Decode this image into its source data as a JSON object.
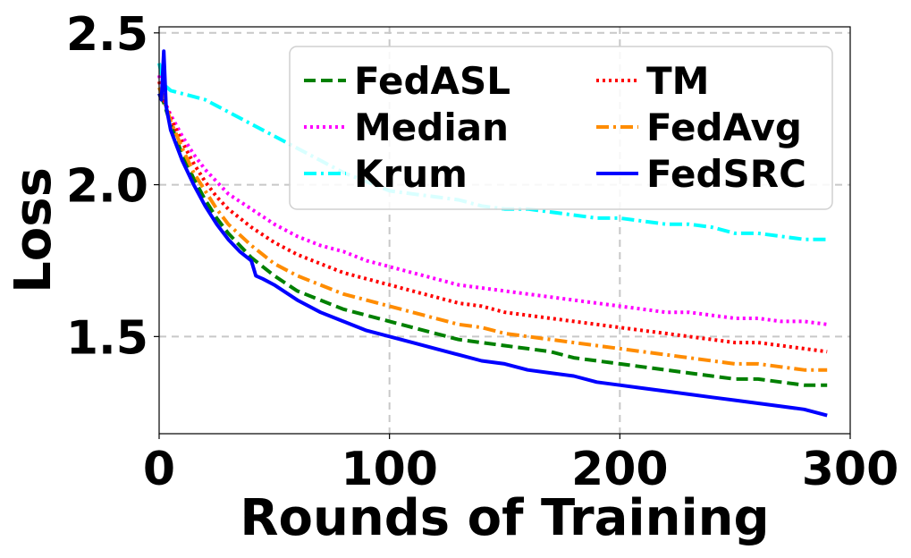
{
  "chart_data": {
    "type": "line",
    "title": "",
    "xlabel": "Rounds of Training",
    "ylabel": "Loss",
    "xlim": [
      0,
      300
    ],
    "ylim": [
      1.18,
      2.52
    ],
    "xticks": [
      0,
      100,
      200,
      300
    ],
    "yticks": [
      1.5,
      2.0,
      2.5
    ],
    "xtick_labels": [
      "0",
      "100",
      "200",
      "300"
    ],
    "ytick_labels": [
      "1.5",
      "2.0",
      "2.5"
    ],
    "grid": true,
    "legend_position": "top-right",
    "series": [
      {
        "name": "FedASL",
        "color": "#008000",
        "dash": "dashed",
        "x": [
          0,
          2,
          5,
          10,
          15,
          20,
          25,
          30,
          40,
          50,
          60,
          70,
          80,
          90,
          100,
          110,
          120,
          130,
          140,
          150,
          160,
          170,
          180,
          190,
          200,
          210,
          220,
          230,
          240,
          250,
          260,
          270,
          280,
          290
        ],
        "y": [
          2.3,
          2.27,
          2.2,
          2.1,
          2.02,
          1.95,
          1.89,
          1.84,
          1.76,
          1.7,
          1.65,
          1.62,
          1.59,
          1.57,
          1.55,
          1.53,
          1.51,
          1.49,
          1.48,
          1.47,
          1.46,
          1.45,
          1.43,
          1.42,
          1.41,
          1.4,
          1.39,
          1.38,
          1.37,
          1.36,
          1.36,
          1.35,
          1.34,
          1.34
        ]
      },
      {
        "name": "Median",
        "color": "#ff00ff",
        "dash": "dotted",
        "x": [
          0,
          2,
          5,
          10,
          15,
          20,
          25,
          30,
          40,
          50,
          60,
          70,
          80,
          90,
          100,
          110,
          120,
          130,
          140,
          150,
          160,
          170,
          180,
          190,
          200,
          210,
          220,
          230,
          240,
          250,
          260,
          270,
          280,
          290
        ],
        "y": [
          2.36,
          2.28,
          2.23,
          2.16,
          2.1,
          2.05,
          2.01,
          1.97,
          1.92,
          1.87,
          1.83,
          1.8,
          1.78,
          1.75,
          1.73,
          1.71,
          1.69,
          1.67,
          1.66,
          1.65,
          1.64,
          1.63,
          1.62,
          1.61,
          1.6,
          1.59,
          1.58,
          1.58,
          1.57,
          1.56,
          1.56,
          1.55,
          1.55,
          1.54
        ]
      },
      {
        "name": "Krum",
        "color": "#00ffff",
        "dash": "dashdot",
        "x": [
          0,
          2,
          5,
          10,
          15,
          20,
          25,
          30,
          40,
          50,
          60,
          70,
          80,
          90,
          100,
          110,
          120,
          130,
          140,
          150,
          160,
          170,
          180,
          190,
          200,
          210,
          220,
          230,
          240,
          250,
          260,
          270,
          280,
          290
        ],
        "y": [
          2.4,
          2.33,
          2.31,
          2.3,
          2.29,
          2.28,
          2.26,
          2.24,
          2.2,
          2.16,
          2.12,
          2.08,
          2.04,
          2.01,
          1.98,
          1.97,
          1.96,
          1.95,
          1.93,
          1.92,
          1.92,
          1.91,
          1.9,
          1.89,
          1.89,
          1.88,
          1.87,
          1.87,
          1.86,
          1.84,
          1.84,
          1.83,
          1.82,
          1.82
        ]
      },
      {
        "name": "TM",
        "color": "#ff0000",
        "dash": "dotted",
        "x": [
          0,
          2,
          5,
          10,
          15,
          20,
          25,
          30,
          40,
          50,
          60,
          70,
          80,
          90,
          100,
          110,
          120,
          130,
          140,
          150,
          160,
          170,
          180,
          190,
          200,
          210,
          220,
          230,
          240,
          250,
          260,
          270,
          280,
          290
        ],
        "y": [
          2.34,
          2.28,
          2.22,
          2.14,
          2.07,
          2.01,
          1.96,
          1.92,
          1.86,
          1.81,
          1.77,
          1.74,
          1.71,
          1.69,
          1.67,
          1.65,
          1.63,
          1.61,
          1.6,
          1.58,
          1.57,
          1.56,
          1.55,
          1.54,
          1.53,
          1.52,
          1.51,
          1.5,
          1.49,
          1.48,
          1.48,
          1.47,
          1.46,
          1.45
        ]
      },
      {
        "name": "FedAvg",
        "color": "#ff8c00",
        "dash": "dashdot",
        "x": [
          0,
          2,
          5,
          10,
          15,
          20,
          25,
          30,
          40,
          50,
          60,
          70,
          80,
          90,
          100,
          110,
          120,
          130,
          140,
          150,
          160,
          170,
          180,
          190,
          200,
          210,
          220,
          230,
          240,
          250,
          260,
          270,
          280,
          290
        ],
        "y": [
          2.32,
          2.28,
          2.21,
          2.12,
          2.04,
          1.98,
          1.92,
          1.87,
          1.8,
          1.74,
          1.7,
          1.67,
          1.64,
          1.62,
          1.6,
          1.58,
          1.56,
          1.54,
          1.53,
          1.51,
          1.5,
          1.49,
          1.48,
          1.47,
          1.46,
          1.45,
          1.44,
          1.43,
          1.42,
          1.41,
          1.41,
          1.4,
          1.39,
          1.39
        ]
      },
      {
        "name": "FedSRC",
        "color": "#0000ff",
        "dash": "solid",
        "x": [
          0,
          1,
          2,
          3,
          5,
          10,
          15,
          20,
          25,
          30,
          35,
          40,
          42,
          45,
          50,
          60,
          70,
          80,
          90,
          100,
          110,
          120,
          130,
          140,
          150,
          160,
          170,
          180,
          190,
          200,
          210,
          220,
          230,
          240,
          250,
          260,
          270,
          280,
          290
        ],
        "y": [
          2.3,
          2.28,
          2.44,
          2.26,
          2.18,
          2.08,
          2.0,
          1.93,
          1.87,
          1.82,
          1.78,
          1.75,
          1.7,
          1.69,
          1.67,
          1.62,
          1.58,
          1.55,
          1.52,
          1.5,
          1.48,
          1.46,
          1.44,
          1.42,
          1.41,
          1.39,
          1.38,
          1.37,
          1.35,
          1.34,
          1.33,
          1.32,
          1.31,
          1.3,
          1.29,
          1.28,
          1.27,
          1.26,
          1.24
        ]
      }
    ]
  }
}
